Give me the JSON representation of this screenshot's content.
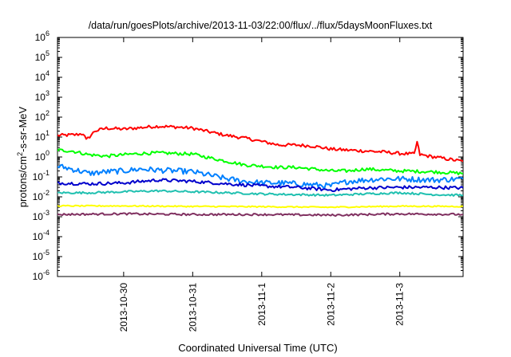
{
  "chart_data": {
    "type": "line",
    "title": "/data/run/goesPlots/archive/2013-11-03/22:00/flux/../flux/5daysMoonFluxes.txt",
    "xlabel": "Coordinated Universal Time (UTC)",
    "ylabel_parts": {
      "pre": "protons/cm",
      "sup": "2",
      "post": "-s-sr-MeV"
    },
    "y_scale": "log",
    "ylim": [
      1e-06,
      1000000.0
    ],
    "y_ticks": [
      {
        "value": -6,
        "base": "10",
        "exp": "-6"
      },
      {
        "value": -5,
        "base": "10",
        "exp": "-5"
      },
      {
        "value": -4,
        "base": "10",
        "exp": "-4"
      },
      {
        "value": -3,
        "base": "10",
        "exp": "-3"
      },
      {
        "value": -2,
        "base": "10",
        "exp": "-2"
      },
      {
        "value": -1,
        "base": "10",
        "exp": "-1"
      },
      {
        "value": 0,
        "base": "10",
        "exp": "0"
      },
      {
        "value": 1,
        "base": "10",
        "exp": "1"
      },
      {
        "value": 2,
        "base": "10",
        "exp": "2"
      },
      {
        "value": 3,
        "base": "10",
        "exp": "3"
      },
      {
        "value": 4,
        "base": "10",
        "exp": "4"
      },
      {
        "value": 5,
        "base": "10",
        "exp": "5"
      },
      {
        "value": 6,
        "base": "10",
        "exp": "6"
      }
    ],
    "x_range": [
      "2013-10-29 01:00",
      "2013-11-03 22:00"
    ],
    "x_ticks": [
      "2013-10-30",
      "2013-10-31",
      "2013-11-1",
      "2013-11-2",
      "2013-11-3"
    ],
    "x_tick_times": [
      "2013-10-30 00:00",
      "2013-10-31 00:00",
      "2013-11-01 00:00",
      "2013-11-02 00:00",
      "2013-11-03 00:00"
    ],
    "grid": false,
    "legend": "none",
    "series": [
      {
        "color": "#ff0000",
        "points": [
          [
            "2013-10-29 01:00",
            12
          ],
          [
            "2013-10-29 07:00",
            13
          ],
          [
            "2013-10-29 10:00",
            15
          ],
          [
            "2013-10-29 11:00",
            7
          ],
          [
            "2013-10-29 14:00",
            20
          ],
          [
            "2013-10-29 18:00",
            28
          ],
          [
            "2013-10-30 00:00",
            25
          ],
          [
            "2013-10-30 06:00",
            30
          ],
          [
            "2013-10-30 12:00",
            35
          ],
          [
            "2013-10-30 18:00",
            32
          ],
          [
            "2013-10-31 00:00",
            28
          ],
          [
            "2013-10-31 06:00",
            18
          ],
          [
            "2013-10-31 12:00",
            12
          ],
          [
            "2013-10-31 18:00",
            9
          ],
          [
            "2013-11-01 00:00",
            6
          ],
          [
            "2013-11-01 06:00",
            4
          ],
          [
            "2013-11-01 12:00",
            4
          ],
          [
            "2013-11-01 18:00",
            3.5
          ],
          [
            "2013-11-02 00:00",
            2.5
          ],
          [
            "2013-11-02 06:00",
            2.2
          ],
          [
            "2013-11-02 12:00",
            2
          ],
          [
            "2013-11-02 18:00",
            1.8
          ],
          [
            "2013-11-03 00:00",
            1.5
          ],
          [
            "2013-11-03 05:00",
            1.4
          ],
          [
            "2013-11-03 06:00",
            5.5
          ],
          [
            "2013-11-03 07:00",
            1.3
          ],
          [
            "2013-11-03 12:00",
            1
          ],
          [
            "2013-11-03 22:00",
            0.6
          ]
        ]
      },
      {
        "color": "#00ff00",
        "points": [
          [
            "2013-10-29 01:00",
            2.2
          ],
          [
            "2013-10-29 06:00",
            2
          ],
          [
            "2013-10-29 12:00",
            1.3
          ],
          [
            "2013-10-29 18:00",
            1.1
          ],
          [
            "2013-10-30 00:00",
            1.3
          ],
          [
            "2013-10-30 06:00",
            1.5
          ],
          [
            "2013-10-30 12:00",
            1.6
          ],
          [
            "2013-10-30 18:00",
            1.5
          ],
          [
            "2013-10-31 00:00",
            1.4
          ],
          [
            "2013-10-31 06:00",
            0.9
          ],
          [
            "2013-10-31 12:00",
            0.6
          ],
          [
            "2013-10-31 18:00",
            0.4
          ],
          [
            "2013-11-01 00:00",
            0.35
          ],
          [
            "2013-11-01 06:00",
            0.3
          ],
          [
            "2013-11-01 12:00",
            0.3
          ],
          [
            "2013-11-01 18:00",
            0.25
          ],
          [
            "2013-11-02 00:00",
            0.2
          ],
          [
            "2013-11-02 06:00",
            0.2
          ],
          [
            "2013-11-02 12:00",
            0.25
          ],
          [
            "2013-11-02 18:00",
            0.22
          ],
          [
            "2013-11-03 00:00",
            0.2
          ],
          [
            "2013-11-03 12:00",
            0.18
          ],
          [
            "2013-11-03 22:00",
            0.15
          ]
        ]
      },
      {
        "color": "#0080ff",
        "points": [
          [
            "2013-10-29 01:00",
            0.35
          ],
          [
            "2013-10-29 06:00",
            0.25
          ],
          [
            "2013-10-29 12:00",
            0.15
          ],
          [
            "2013-10-29 18:00",
            0.18
          ],
          [
            "2013-10-30 00:00",
            0.2
          ],
          [
            "2013-10-30 06:00",
            0.25
          ],
          [
            "2013-10-30 12:00",
            0.22
          ],
          [
            "2013-10-30 18:00",
            0.2
          ],
          [
            "2013-10-31 00:00",
            0.18
          ],
          [
            "2013-10-31 06:00",
            0.12
          ],
          [
            "2013-10-31 12:00",
            0.08
          ],
          [
            "2013-10-31 18:00",
            0.06
          ],
          [
            "2013-11-01 00:00",
            0.05
          ],
          [
            "2013-11-01 06:00",
            0.05
          ],
          [
            "2013-11-01 12:00",
            0.045
          ],
          [
            "2013-11-01 18:00",
            0.04
          ],
          [
            "2013-11-02 00:00",
            0.035
          ],
          [
            "2013-11-02 06:00",
            0.06
          ],
          [
            "2013-11-02 12:00",
            0.07
          ],
          [
            "2013-11-02 18:00",
            0.08
          ],
          [
            "2013-11-03 00:00",
            0.08
          ],
          [
            "2013-11-03 12:00",
            0.07
          ],
          [
            "2013-11-03 22:00",
            0.08
          ]
        ]
      },
      {
        "color": "#0000cc",
        "points": [
          [
            "2013-10-29 01:00",
            0.05
          ],
          [
            "2013-10-29 12:00",
            0.045
          ],
          [
            "2013-10-30 00:00",
            0.05
          ],
          [
            "2013-10-30 12:00",
            0.07
          ],
          [
            "2013-10-31 00:00",
            0.06
          ],
          [
            "2013-10-31 12:00",
            0.045
          ],
          [
            "2013-11-01 00:00",
            0.035
          ],
          [
            "2013-11-01 12:00",
            0.03
          ],
          [
            "2013-11-02 00:00",
            0.022
          ],
          [
            "2013-11-02 12:00",
            0.028
          ],
          [
            "2013-11-03 00:00",
            0.03
          ],
          [
            "2013-11-03 12:00",
            0.03
          ],
          [
            "2013-11-03 22:00",
            0.028
          ]
        ]
      },
      {
        "color": "#20c0b0",
        "points": [
          [
            "2013-10-29 01:00",
            0.016
          ],
          [
            "2013-10-29 12:00",
            0.016
          ],
          [
            "2013-10-30 00:00",
            0.018
          ],
          [
            "2013-10-30 12:00",
            0.02
          ],
          [
            "2013-10-31 00:00",
            0.018
          ],
          [
            "2013-10-31 12:00",
            0.016
          ],
          [
            "2013-11-01 00:00",
            0.014
          ],
          [
            "2013-11-01 12:00",
            0.013
          ],
          [
            "2013-11-02 00:00",
            0.012
          ],
          [
            "2013-11-02 12:00",
            0.014
          ],
          [
            "2013-11-03 00:00",
            0.016
          ],
          [
            "2013-11-03 12:00",
            0.013
          ],
          [
            "2013-11-03 22:00",
            0.012
          ]
        ]
      },
      {
        "color": "#ffff00",
        "points": [
          [
            "2013-10-29 01:00",
            0.0035
          ],
          [
            "2013-10-30 00:00",
            0.0035
          ],
          [
            "2013-10-31 00:00",
            0.0033
          ],
          [
            "2013-11-01 00:00",
            0.0032
          ],
          [
            "2013-11-02 00:00",
            0.003
          ],
          [
            "2013-11-03 00:00",
            0.0034
          ],
          [
            "2013-11-03 22:00",
            0.0033
          ]
        ]
      },
      {
        "color": "#803060",
        "points": [
          [
            "2013-10-29 01:00",
            0.0013
          ],
          [
            "2013-10-30 00:00",
            0.0014
          ],
          [
            "2013-10-31 00:00",
            0.0013
          ],
          [
            "2013-11-01 00:00",
            0.0013
          ],
          [
            "2013-11-02 00:00",
            0.0012
          ],
          [
            "2013-11-03 00:00",
            0.0014
          ],
          [
            "2013-11-03 22:00",
            0.0013
          ]
        ]
      }
    ]
  }
}
